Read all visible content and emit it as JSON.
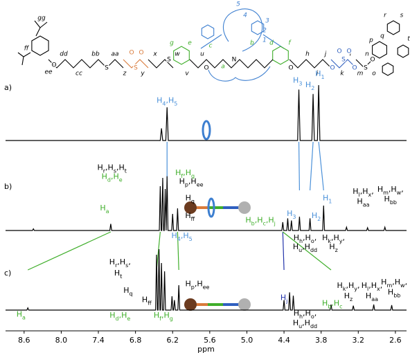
{
  "chart_data": {
    "type": "line",
    "xlabel": "ppm",
    "xlim": [
      8.9,
      2.42
    ],
    "xticks": [
      8.6,
      {
        "value": 8,
        "label": "8.0"
      },
      7.4,
      6.8,
      6.2,
      5.6,
      {
        "value": 5,
        "label": "5.0"
      },
      4.4,
      3.8,
      3.2,
      2.6
    ],
    "series": [
      {
        "name": "a)",
        "color": "#000000",
        "x": [
          8.9,
          6.4,
          6.38,
          6.36,
          6.31,
          6.29,
          6.27,
          4.18,
          4.16,
          4.14,
          3.95,
          3.93,
          3.91,
          3.86,
          3.84,
          3.82,
          2.42
        ],
        "values": [
          0,
          0,
          22,
          0,
          0,
          60,
          0,
          0,
          92,
          0,
          0,
          84,
          0,
          0,
          100,
          0,
          0
        ]
      },
      {
        "name": "b)",
        "color": "#000000",
        "x": [
          8.9,
          8.465,
          8.45,
          8.435,
          7.215,
          7.2,
          7.185,
          6.415,
          6.4,
          6.385,
          6.375,
          6.36,
          6.345,
          6.335,
          6.32,
          6.305,
          6.305,
          6.29,
          6.275,
          6.215,
          6.2,
          6.185,
          6.135,
          6.12,
          6.105,
          4.435,
          4.42,
          4.405,
          4.355,
          4.34,
          4.325,
          4.295,
          4.28,
          4.265,
          4.165,
          4.15,
          4.135,
          3.995,
          3.98,
          3.965,
          3.775,
          3.76,
          3.745,
          3.405,
          3.39,
          3.375,
          3.065,
          3.05,
          3.035,
          2.785,
          2.77,
          2.755,
          2.42
        ],
        "values": [
          0,
          0,
          3,
          0,
          0,
          12,
          0,
          0,
          80,
          0,
          0,
          95,
          0,
          0,
          75,
          0,
          0,
          98,
          0,
          0,
          30,
          0,
          0,
          40,
          0,
          0,
          15,
          0,
          0,
          22,
          0,
          0,
          18,
          0,
          0,
          25,
          0,
          0,
          22,
          0,
          0,
          45,
          0,
          0,
          6,
          0,
          0,
          5,
          0,
          0,
          6,
          0,
          0
        ]
      },
      {
        "name": "c)",
        "color": "#000000",
        "x": [
          8.9,
          8.555,
          8.54,
          8.525,
          6.475,
          6.46,
          6.445,
          6.435,
          6.42,
          6.405,
          6.395,
          6.38,
          6.365,
          6.345,
          6.33,
          6.315,
          6.225,
          6.21,
          6.195,
          6.185,
          6.17,
          6.155,
          6.115,
          6.1,
          6.085,
          4.415,
          4.4,
          4.385,
          4.325,
          4.31,
          4.295,
          4.265,
          4.25,
          4.235,
          3.655,
          3.64,
          3.625,
          3.295,
          3.28,
          3.265,
          2.965,
          2.95,
          2.935,
          2.675,
          2.66,
          2.645,
          2.42
        ],
        "values": [
          0,
          0,
          4,
          0,
          0,
          100,
          0,
          0,
          110,
          0,
          0,
          85,
          0,
          0,
          70,
          0,
          0,
          25,
          0,
          0,
          18,
          0,
          0,
          45,
          0,
          0,
          18,
          0,
          0,
          32,
          0,
          0,
          26,
          0,
          0,
          10,
          0,
          0,
          8,
          0,
          0,
          10,
          0,
          0,
          9,
          0,
          0
        ]
      }
    ],
    "annotations": [
      {
        "text": "H4,H5",
        "series": 0,
        "x": 6.29,
        "y": 72,
        "color": "#4a90d9"
      },
      {
        "text": "H3",
        "series": 0,
        "x": 4.18,
        "y": 108,
        "color": "#4a90d9"
      },
      {
        "text": "H2",
        "series": 0,
        "x": 3.98,
        "y": 100,
        "color": "#4a90d9"
      },
      {
        "text": "H1",
        "series": 0,
        "x": 3.82,
        "y": 120,
        "color": "#4a90d9"
      },
      {
        "text": "Hr,Hs,Ht",
        "series": 1,
        "x": 7.18,
        "y": 113,
        "color": "#000000"
      },
      {
        "text": "Hd,He",
        "series": 1,
        "x": 7.18,
        "y": 97,
        "color": "#3fae2a"
      },
      {
        "text": "Ha",
        "series": 1,
        "x": 7.3,
        "y": 40,
        "color": "#3fae2a"
      },
      {
        "text": "Hf,Hg",
        "series": 1,
        "x": 6.0,
        "y": 104,
        "color": "#3fae2a"
      },
      {
        "text": "Hp,Hee",
        "series": 1,
        "x": 5.9,
        "y": 88,
        "color": "#000000"
      },
      {
        "text": "Hq",
        "series": 1,
        "x": 5.92,
        "y": 58,
        "color": "#000000"
      },
      {
        "text": "Hff",
        "series": 1,
        "x": 5.92,
        "y": 26,
        "color": "#000000"
      },
      {
        "text": "H4,H5",
        "series": 1,
        "x": 6.05,
        "y": -10,
        "color": "#4a90d9"
      },
      {
        "text": "Hb,Hc,Hj",
        "series": 1,
        "x": 4.78,
        "y": 18,
        "color": "#3fae2a"
      },
      {
        "text": "H3",
        "series": 1,
        "x": 4.28,
        "y": 30,
        "color": "#4a90d9"
      },
      {
        "text": "Hh,Ho,",
        "series": 1,
        "x": 4.06,
        "y": -14,
        "color": "#000000"
      },
      {
        "text": "Hu,Hdd",
        "series": 1,
        "x": 4.06,
        "y": -30,
        "color": "#000000"
      },
      {
        "text": "H2",
        "series": 1,
        "x": 3.88,
        "y": 26,
        "color": "#4a90d9"
      },
      {
        "text": "H1",
        "series": 1,
        "x": 3.7,
        "y": 58,
        "color": "#4a90d9"
      },
      {
        "text": "Hk,Hy,",
        "series": 1,
        "x": 3.6,
        "y": -14,
        "color": "#000000"
      },
      {
        "text": "Hz",
        "series": 1,
        "x": 3.6,
        "y": -30,
        "color": "#000000"
      },
      {
        "text": "Hl,Hx,",
        "series": 1,
        "x": 3.12,
        "y": 70,
        "color": "#000000"
      },
      {
        "text": "Haa",
        "series": 1,
        "x": 3.12,
        "y": 52,
        "color": "#000000"
      },
      {
        "text": "Hm,Hw,",
        "series": 1,
        "x": 2.68,
        "y": 74,
        "color": "#000000"
      },
      {
        "text": "Hbb",
        "series": 1,
        "x": 2.68,
        "y": 56,
        "color": "#000000"
      },
      {
        "text": "Hr,Hs,",
        "series": 2,
        "x": 7.05,
        "y": 86,
        "color": "#000000"
      },
      {
        "text": "Ht",
        "series": 2,
        "x": 7.08,
        "y": 66,
        "color": "#000000"
      },
      {
        "text": "Hq",
        "series": 2,
        "x": 6.92,
        "y": 35,
        "color": "#000000"
      },
      {
        "text": "Hff",
        "series": 2,
        "x": 6.62,
        "y": 18,
        "color": "#000000"
      },
      {
        "text": "Hp,Hee",
        "series": 2,
        "x": 5.8,
        "y": 47,
        "color": "#000000"
      },
      {
        "text": "Ha",
        "series": 2,
        "x": 8.65,
        "y": -8,
        "color": "#3fae2a"
      },
      {
        "text": "Hd,He",
        "series": 2,
        "x": 7.05,
        "y": -10,
        "color": "#3fae2a"
      },
      {
        "text": "Hf,Hg",
        "series": 2,
        "x": 6.35,
        "y": -10,
        "color": "#3fae2a"
      },
      {
        "text": "Hj",
        "series": 2,
        "x": 4.4,
        "y": 22,
        "color": "#2233aa"
      },
      {
        "text": "Hh,Ho,",
        "series": 2,
        "x": 4.06,
        "y": -6,
        "color": "#000000"
      },
      {
        "text": "Hu,Hdd",
        "series": 2,
        "x": 4.06,
        "y": -24,
        "color": "#000000"
      },
      {
        "text": "Hb,Hc",
        "series": 2,
        "x": 3.62,
        "y": 12,
        "color": "#3fae2a"
      },
      {
        "text": "Hk,Hy,",
        "series": 2,
        "x": 3.36,
        "y": 44,
        "color": "#000000"
      },
      {
        "text": "Hz",
        "series": 2,
        "x": 3.36,
        "y": 25,
        "color": "#000000"
      },
      {
        "text": "Hl,Hx,",
        "series": 2,
        "x": 2.98,
        "y": 44,
        "color": "#000000"
      },
      {
        "text": "Haa",
        "series": 2,
        "x": 2.98,
        "y": 25,
        "color": "#000000"
      },
      {
        "text": "Hm,Hw,",
        "series": 2,
        "x": 2.62,
        "y": 50,
        "color": "#000000"
      },
      {
        "text": "Hbb",
        "series": 2,
        "x": 2.62,
        "y": 32,
        "color": "#000000"
      }
    ],
    "links": [
      {
        "series": [
          0,
          1
        ],
        "x": [
          6.29,
          6.29
        ],
        "color": "#4a90d9"
      },
      {
        "series": [
          0,
          1
        ],
        "x": [
          4.16,
          4.15
        ],
        "color": "#4a90d9"
      },
      {
        "series": [
          0,
          1
        ],
        "x": [
          3.93,
          3.98
        ],
        "color": "#4a90d9"
      },
      {
        "series": [
          0,
          1
        ],
        "x": [
          3.84,
          3.76
        ],
        "color": "#4a90d9"
      },
      {
        "series": [
          1,
          2
        ],
        "x": [
          7.2,
          8.54
        ],
        "color": "#3fae2a"
      },
      {
        "series": [
          1,
          2
        ],
        "x": [
          6.4,
          6.46
        ],
        "color": "#3fae2a"
      },
      {
        "series": [
          1,
          2
        ],
        "x": [
          6.12,
          6.1
        ],
        "color": "#3fae2a"
      },
      {
        "series": [
          1,
          2
        ],
        "x": [
          4.42,
          4.4
        ],
        "color": "#2233aa"
      },
      {
        "series": [
          1,
          2
        ],
        "x": [
          4.42,
          3.64
        ],
        "color": "#3fae2a"
      }
    ]
  },
  "structure": {
    "labels": [
      "gg",
      "ff",
      "ee",
      "dd",
      "cc",
      "bb",
      "aa",
      "z",
      "y",
      "x",
      "w",
      "v",
      "u",
      "g",
      "e",
      "c",
      "a",
      "b",
      "d",
      "f",
      "h",
      "i",
      "j",
      "k",
      "l",
      "m",
      "n",
      "o",
      "p",
      "q",
      "r",
      "s",
      "t",
      "1",
      "2",
      "3",
      "4",
      "5"
    ],
    "atoms": [
      "O",
      "S",
      "S",
      "O",
      "O",
      "S",
      "O",
      "N",
      "O",
      "O",
      "S",
      "O",
      "O",
      "O",
      "S",
      "O"
    ]
  }
}
